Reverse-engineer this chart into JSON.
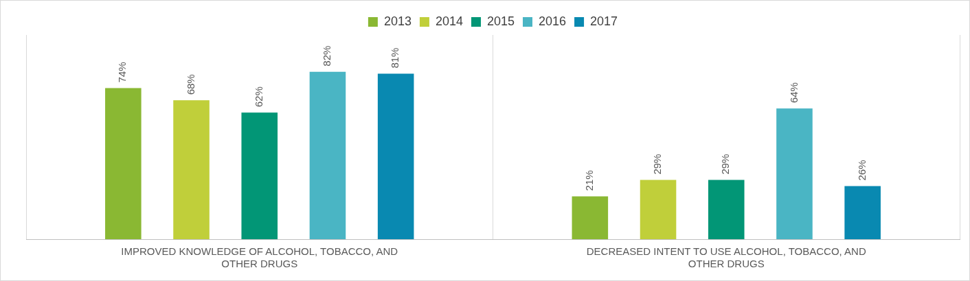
{
  "chart_data": {
    "type": "bar",
    "categories": [
      "IMPROVED KNOWLEDGE OF ALCOHOL, TOBACCO, AND OTHER DRUGS",
      "DECREASED INTENT TO USE ALCOHOL, TOBACCO, AND OTHER DRUGS"
    ],
    "series": [
      {
        "name": "2013",
        "color": "#8ab833",
        "values": [
          74,
          21
        ],
        "value_labels": [
          "74%",
          "21%"
        ]
      },
      {
        "name": "2014",
        "color": "#c0cf3a",
        "values": [
          68,
          29
        ],
        "value_labels": [
          "68%",
          "29%"
        ]
      },
      {
        "name": "2015",
        "color": "#029676",
        "values": [
          62,
          29
        ],
        "value_labels": [
          "62%",
          "29%"
        ]
      },
      {
        "name": "2016",
        "color": "#4ab5c4",
        "values": [
          82,
          64
        ],
        "value_labels": [
          "82%",
          "64%"
        ]
      },
      {
        "name": "2017",
        "color": "#0989b1",
        "values": [
          81,
          26
        ],
        "value_labels": [
          "81%",
          "26%"
        ]
      }
    ],
    "ylim": [
      0,
      100
    ],
    "tick_labels": "x",
    "grid": "x",
    "legend": "top"
  }
}
